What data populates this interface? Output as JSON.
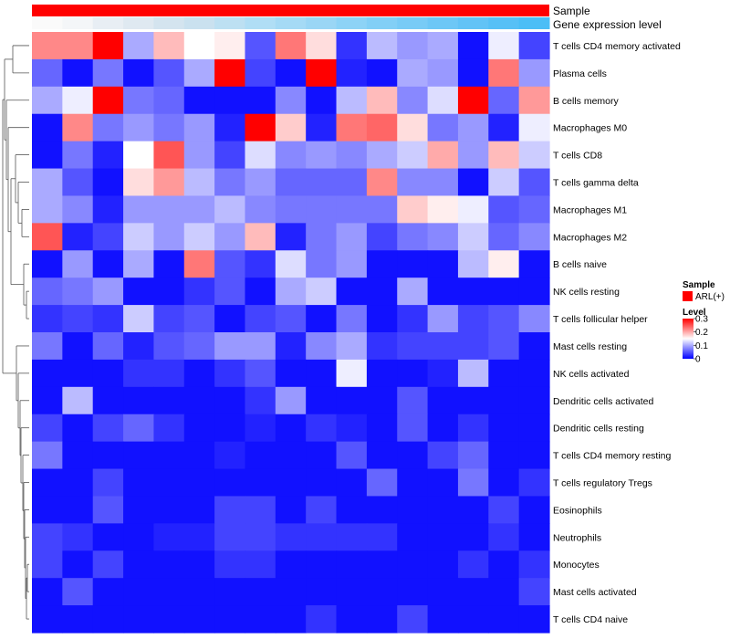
{
  "chart_data": {
    "type": "heatmap",
    "annotation_tracks": [
      "Sample",
      "Gene expression level"
    ],
    "rows": [
      "T cells CD4 memory activated",
      "Plasma cells",
      "B cells memory",
      "Macrophages M0",
      "T cells CD8",
      "T cells gamma delta",
      "Macrophages M1",
      "Macrophages M2",
      "B cells naive",
      "NK cells resting",
      "T cells follicular helper",
      "Mast cells resting",
      "NK cells activated",
      "Dendritic cells activated",
      "Dendritic cells resting",
      "T cells CD4 memory resting",
      "T cells regulatory  Tregs",
      "Eosinophils",
      "Neutrophils",
      "Monocytes",
      "Mast cells activated",
      "T cells CD4 naive"
    ],
    "values": [
      [
        0.22,
        0.22,
        0.3,
        0.1,
        0.19,
        0.15,
        0.16,
        0.05,
        0.23,
        0.17,
        0.03,
        0.11,
        0.09,
        0.1,
        0.01,
        0.14,
        0.04
      ],
      [
        0.06,
        0.01,
        0.07,
        0.01,
        0.05,
        0.1,
        0.3,
        0.04,
        0.01,
        0.3,
        0.02,
        0.01,
        0.1,
        0.09,
        0.01,
        0.23,
        0.09
      ],
      [
        0.1,
        0.14,
        0.3,
        0.07,
        0.06,
        0.01,
        0.01,
        0.01,
        0.08,
        0.01,
        0.11,
        0.19,
        0.08,
        0.13,
        0.3,
        0.06,
        0.21
      ],
      [
        0.01,
        0.22,
        0.07,
        0.09,
        0.07,
        0.09,
        0.02,
        0.3,
        0.18,
        0.02,
        0.23,
        0.24,
        0.17,
        0.07,
        0.09,
        0.02,
        0.14
      ],
      [
        0.01,
        0.07,
        0.02,
        0.15,
        0.25,
        0.09,
        0.04,
        0.13,
        0.08,
        0.09,
        0.08,
        0.1,
        0.12,
        0.2,
        0.09,
        0.19,
        0.12
      ],
      [
        0.1,
        0.05,
        0.01,
        0.17,
        0.21,
        0.11,
        0.07,
        0.09,
        0.06,
        0.06,
        0.06,
        0.22,
        0.08,
        0.08,
        0.01,
        0.12,
        0.05
      ],
      [
        0.1,
        0.08,
        0.02,
        0.09,
        0.09,
        0.09,
        0.11,
        0.08,
        0.07,
        0.07,
        0.07,
        0.07,
        0.18,
        0.16,
        0.14,
        0.05,
        0.06
      ],
      [
        0.25,
        0.02,
        0.04,
        0.12,
        0.09,
        0.12,
        0.09,
        0.19,
        0.02,
        0.07,
        0.09,
        0.04,
        0.07,
        0.08,
        0.12,
        0.06,
        0.08
      ],
      [
        0.01,
        0.09,
        0.01,
        0.1,
        0.01,
        0.23,
        0.05,
        0.03,
        0.13,
        0.07,
        0.09,
        0.01,
        0.01,
        0.01,
        0.11,
        0.16,
        0.01
      ],
      [
        0.06,
        0.07,
        0.09,
        0.01,
        0.01,
        0.03,
        0.05,
        0.01,
        0.1,
        0.12,
        0.01,
        0.01,
        0.1,
        0.01,
        0.01,
        0.01,
        0.01
      ],
      [
        0.03,
        0.04,
        0.03,
        0.12,
        0.04,
        0.05,
        0.01,
        0.04,
        0.05,
        0.01,
        0.07,
        0.01,
        0.03,
        0.09,
        0.04,
        0.05,
        0.08
      ],
      [
        0.07,
        0.01,
        0.06,
        0.02,
        0.05,
        0.06,
        0.09,
        0.09,
        0.02,
        0.08,
        0.1,
        0.03,
        0.04,
        0.04,
        0.04,
        0.05,
        0.01
      ],
      [
        0.01,
        0.01,
        0.01,
        0.03,
        0.03,
        0.01,
        0.03,
        0.05,
        0.01,
        0.01,
        0.14,
        0.01,
        0.01,
        0.02,
        0.11,
        0.01,
        0.01
      ],
      [
        0.01,
        0.11,
        0.01,
        0.01,
        0.01,
        0.01,
        0.01,
        0.03,
        0.09,
        0.01,
        0.01,
        0.01,
        0.05,
        0.01,
        0.01,
        0.01,
        0.01
      ],
      [
        0.04,
        0.01,
        0.04,
        0.06,
        0.03,
        0.01,
        0.01,
        0.02,
        0.01,
        0.03,
        0.02,
        0.01,
        0.05,
        0.01,
        0.03,
        0.01,
        0.01
      ],
      [
        0.07,
        0.01,
        0.01,
        0.01,
        0.01,
        0.01,
        0.02,
        0.01,
        0.01,
        0.01,
        0.05,
        0.01,
        0.01,
        0.04,
        0.06,
        0.01,
        0.01
      ],
      [
        0.01,
        0.01,
        0.04,
        0.01,
        0.01,
        0.01,
        0.01,
        0.01,
        0.01,
        0.01,
        0.01,
        0.06,
        0.01,
        0.01,
        0.07,
        0.01,
        0.03
      ],
      [
        0.01,
        0.01,
        0.05,
        0.01,
        0.01,
        0.01,
        0.04,
        0.04,
        0.01,
        0.04,
        0.01,
        0.01,
        0.01,
        0.01,
        0.01,
        0.04,
        0.01
      ],
      [
        0.04,
        0.03,
        0.01,
        0.01,
        0.02,
        0.02,
        0.04,
        0.04,
        0.03,
        0.03,
        0.03,
        0.03,
        0.01,
        0.01,
        0.01,
        0.03,
        0.01
      ],
      [
        0.04,
        0.01,
        0.04,
        0.01,
        0.01,
        0.01,
        0.03,
        0.03,
        0.01,
        0.01,
        0.01,
        0.01,
        0.01,
        0.01,
        0.03,
        0.01,
        0.03
      ],
      [
        0.01,
        0.05,
        0.01,
        0.01,
        0.01,
        0.01,
        0.01,
        0.01,
        0.01,
        0.01,
        0.01,
        0.01,
        0.01,
        0.01,
        0.01,
        0.01,
        0.04
      ],
      [
        0.01,
        0.01,
        0.01,
        0.01,
        0.01,
        0.01,
        0.01,
        0.01,
        0.01,
        0.03,
        0.01,
        0.01,
        0.04,
        0.01,
        0.01,
        0.01,
        0.01
      ]
    ],
    "sample_color": "#ff0000",
    "expression_level_colors": [
      "#fafafa",
      "#f4f6f8",
      "#e8eef4",
      "#dfe9f1",
      "#d4e4ef",
      "#cae1ef",
      "#bde0f2",
      "#b0def5",
      "#a5daf5",
      "#9ad6f5",
      "#8dd3f6",
      "#82cff6",
      "#78cbf6",
      "#6dc7f6",
      "#62c3f6",
      "#57c0f6",
      "#4bbef6"
    ],
    "color_scale": {
      "low": "#0000ff",
      "mid": "#ffffff",
      "high": "#ff0000",
      "min": 0,
      "max": 0.3
    },
    "legend": {
      "sample_title": "Sample",
      "sample_entry": "ARL(+)",
      "level_title": "Level",
      "ticks": [
        "0.3",
        "0.2",
        "0.1",
        "0"
      ]
    }
  }
}
